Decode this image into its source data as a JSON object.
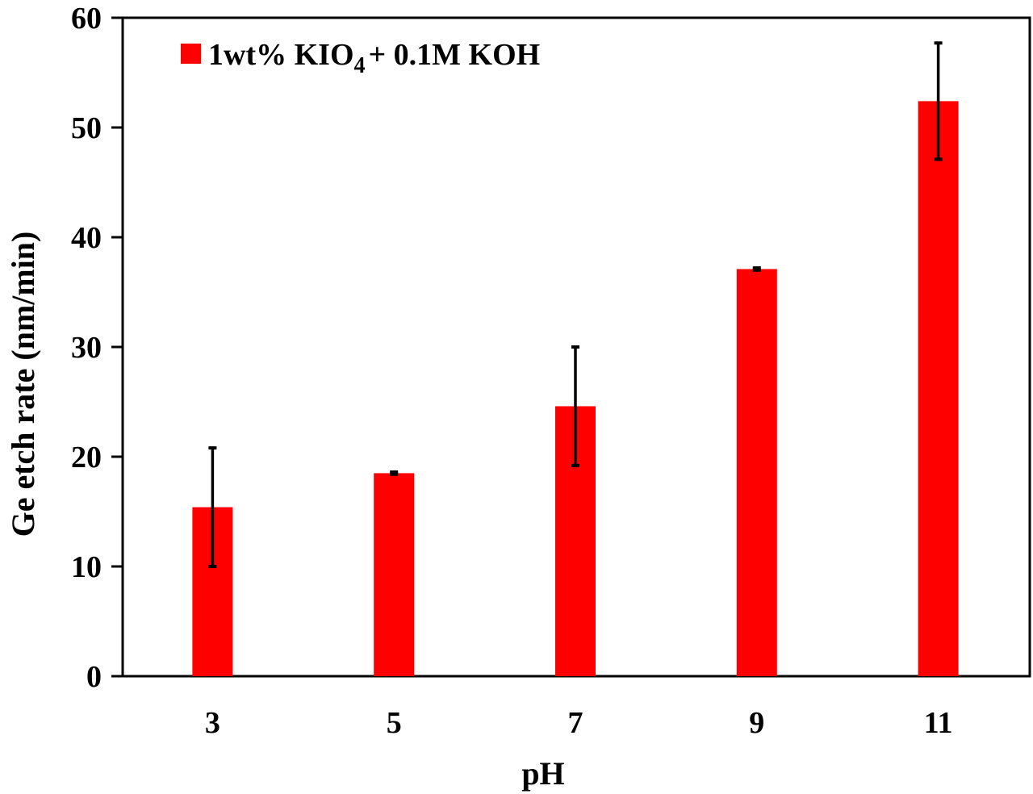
{
  "chart_data": {
    "type": "bar",
    "title": "",
    "xlabel": "pH",
    "ylabel": "Ge etch rate (nm/min)",
    "categories": [
      "3",
      "5",
      "7",
      "9",
      "11"
    ],
    "series": [
      {
        "name": "1wt% KIO4 + 0.1M KOH",
        "color": "#ff0000",
        "values": [
          15.4,
          18.5,
          24.6,
          37.1,
          52.4
        ],
        "error": [
          5.4,
          0.1,
          5.4,
          0.1,
          5.3
        ]
      }
    ],
    "ylim": [
      0,
      60
    ],
    "yticks": [
      0,
      10,
      20,
      30,
      40,
      50,
      60
    ],
    "grid": false,
    "legend_position": "upper-left-inside"
  },
  "legend": {
    "main": "1wt%  KIO",
    "subscript": "4",
    "rest": "+ 0.1M KOH"
  },
  "colors": {
    "bar": "#ff0000",
    "axis": "#000000",
    "background": "#ffffff"
  }
}
